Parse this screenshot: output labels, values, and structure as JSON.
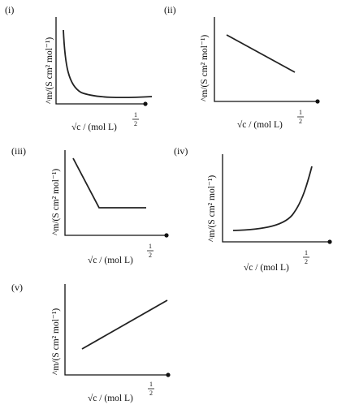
{
  "panels": [
    {
      "roman": "(i)",
      "ylabel": "^m/(S cm² mol⁻¹)",
      "xlabel": "√c / (mol L)",
      "xexp_num": "1",
      "xexp_den": "2",
      "curve": "rapid-decrease-then-flat"
    },
    {
      "roman": "(ii)",
      "ylabel": "^m/(S cm² mol⁻¹)",
      "xlabel": "√c / (mol L)",
      "xexp_num": "1",
      "xexp_den": "2",
      "curve": "linear-decreasing"
    },
    {
      "roman": "(iii)",
      "ylabel": "^m/(S cm² mol⁻¹)",
      "xlabel": "√c / (mol L)",
      "xexp_num": "1",
      "xexp_den": "2",
      "curve": "linear-decrease-then-constant"
    },
    {
      "roman": "(iv)",
      "ylabel": "^m/(S cm² mol⁻¹)",
      "xlabel": "√c / (mol L)",
      "xexp_num": "1",
      "xexp_den": "2",
      "curve": "slow-then-rapid-increase"
    },
    {
      "roman": "(v)",
      "ylabel": "^m/(S cm² mol⁻¹)",
      "xlabel": "√c / (mol L)",
      "xexp_num": "1",
      "xexp_den": "2",
      "curve": "linear-increasing"
    }
  ],
  "colors": {
    "ink": "#111111",
    "curve": "#222222",
    "background": "#ffffff"
  }
}
